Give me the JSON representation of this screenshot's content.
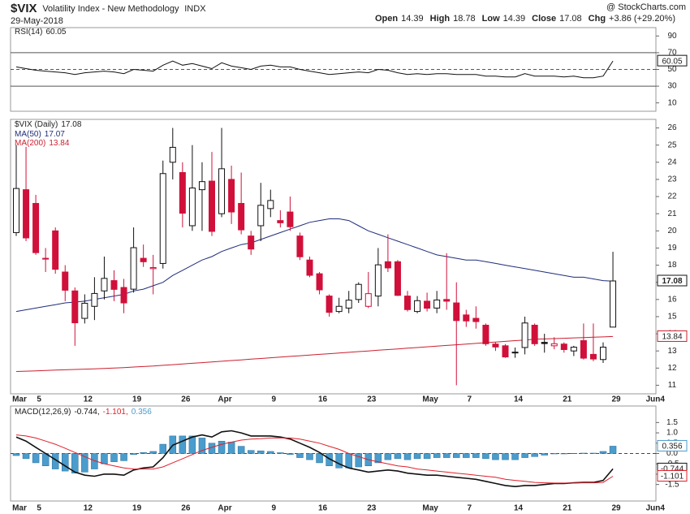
{
  "header": {
    "symbol": "$VIX",
    "name": "Volatility Index - New Methodology",
    "exchange": "INDX",
    "date": "29-May-2018",
    "source": "@ StockCharts.com",
    "quote": [
      {
        "label": "Open",
        "value": 14.39
      },
      {
        "label": "High",
        "value": 18.78
      },
      {
        "label": "Low",
        "value": 14.39
      },
      {
        "label": "Close",
        "value": 17.08
      },
      {
        "label": "Chg",
        "value": "+3.86 (+29.20%)"
      }
    ]
  },
  "chart_data": [
    {
      "type": "line",
      "ylim": [
        0,
        100
      ],
      "yticks": [
        10,
        30,
        50,
        70,
        90
      ],
      "overbought": 70,
      "oversold": 30,
      "centerline": 50,
      "series": [
        {
          "name": "RSI(14)",
          "color": "#111111",
          "values": [
            53,
            51,
            49,
            48,
            47,
            46,
            44,
            46,
            47,
            48,
            47,
            45,
            50,
            49,
            48,
            55,
            60,
            55,
            57,
            54,
            51,
            58,
            54,
            52,
            50,
            54,
            55,
            53,
            53,
            50,
            48,
            46,
            44,
            45,
            46,
            47,
            46,
            50,
            49,
            46,
            44,
            45,
            44,
            45,
            45,
            44,
            44,
            44,
            42,
            42,
            41,
            41,
            45,
            42,
            42,
            42,
            41,
            42,
            40,
            40,
            42,
            60.05,
            null,
            null,
            null,
            null
          ]
        }
      ]
    },
    {
      "type": "candlestick",
      "ylim": [
        10.5,
        26.5
      ],
      "yticks": [
        11,
        12,
        13,
        14,
        15,
        16,
        17,
        18,
        19,
        20,
        21,
        22,
        23,
        24,
        25,
        26
      ],
      "categories": [
        "Mar",
        null,
        "5",
        null,
        null,
        null,
        null,
        "12",
        null,
        null,
        null,
        null,
        "19",
        null,
        null,
        null,
        null,
        "26",
        null,
        null,
        null,
        "Apr",
        null,
        null,
        null,
        null,
        "9",
        null,
        null,
        null,
        null,
        "16",
        null,
        null,
        null,
        null,
        "23",
        null,
        null,
        null,
        null,
        null,
        "May",
        null,
        null,
        null,
        "7",
        null,
        null,
        null,
        null,
        "14",
        null,
        null,
        null,
        null,
        "21",
        null,
        null,
        null,
        null,
        "29",
        null,
        null,
        null,
        "Jun4"
      ],
      "series": [
        {
          "name": "$VIX (Daily)",
          "up_color": "#111111",
          "down_color": "#d0103a",
          "open": [
            19.9,
            22.4,
            21.6,
            18.4,
            20.0,
            17.6,
            16.5,
            14.9,
            15.6,
            16.5,
            17.1,
            16.7,
            16.6,
            18.4,
            17.8,
            18.1,
            24.0,
            23.4,
            20.3,
            22.4,
            22.9,
            21.0,
            23.0,
            21.6,
            19.7,
            20.3,
            21.3,
            20.6,
            21.1,
            19.7,
            18.3,
            17.5,
            16.2,
            15.3,
            15.5,
            16.0,
            15.6,
            16.2,
            18.2,
            18.2,
            16.2,
            15.3,
            15.9,
            15.5,
            16.0,
            15.8,
            15.1,
            14.9,
            14.5,
            13.4,
            13.3,
            12.9,
            13.2,
            14.5,
            13.5,
            13.3,
            13.4,
            13.0,
            13.6,
            12.8,
            12.5,
            14.39,
            null,
            null,
            null,
            null
          ],
          "high": [
            25.0,
            24.9,
            22.1,
            19.0,
            20.2,
            18.0,
            16.7,
            16.3,
            17.3,
            18.5,
            17.7,
            17.2,
            20.2,
            19.2,
            18.6,
            24.1,
            26.0,
            24.0,
            25.0,
            24.0,
            24.6,
            26.0,
            23.8,
            23.4,
            20.0,
            22.8,
            22.4,
            21.2,
            22.0,
            19.9,
            18.5,
            17.6,
            16.3,
            16.1,
            16.5,
            17.0,
            17.6,
            19.0,
            19.8,
            18.3,
            16.5,
            16.2,
            16.4,
            16.5,
            18.7,
            17.0,
            15.4,
            15.6,
            14.6,
            13.5,
            13.4,
            13.2,
            15.0,
            14.6,
            14.0,
            13.8,
            13.5,
            13.3,
            14.6,
            14.6,
            13.5,
            18.78,
            null,
            null,
            null,
            null
          ],
          "low": [
            19.7,
            19.4,
            18.6,
            17.6,
            17.5,
            15.9,
            13.3,
            14.6,
            14.8,
            16.0,
            15.9,
            15.2,
            16.4,
            17.9,
            16.3,
            17.8,
            23.0,
            20.2,
            20.0,
            20.0,
            19.7,
            20.8,
            20.4,
            19.8,
            18.6,
            19.4,
            20.8,
            20.2,
            20.0,
            18.3,
            17.3,
            16.3,
            15.0,
            15.2,
            15.2,
            15.8,
            15.5,
            15.6,
            17.6,
            16.2,
            15.3,
            15.2,
            15.3,
            15.2,
            15.4,
            11.0,
            14.4,
            14.3,
            13.3,
            13.0,
            12.6,
            12.6,
            12.8,
            13.3,
            12.9,
            13.1,
            12.9,
            12.7,
            12.5,
            12.4,
            12.3,
            14.39,
            null,
            null,
            null,
            null
          ],
          "close": [
            22.47,
            19.59,
            18.73,
            18.36,
            17.76,
            16.54,
            14.64,
            15.78,
            16.35,
            17.23,
            16.59,
            15.8,
            19.02,
            18.2,
            17.86,
            23.34,
            24.87,
            21.03,
            22.5,
            22.87,
            19.97,
            23.62,
            21.1,
            20.06,
            18.94,
            21.49,
            21.77,
            20.47,
            20.24,
            18.49,
            17.41,
            16.56,
            15.25,
            15.6,
            15.96,
            16.88,
            16.34,
            18.02,
            17.84,
            16.24,
            15.41,
            15.93,
            15.49,
            15.97,
            15.9,
            14.77,
            14.75,
            14.71,
            13.42,
            13.23,
            12.65,
            12.93,
            14.63,
            13.42,
            13.43,
            13.42,
            13.08,
            13.22,
            12.58,
            12.53,
            13.22,
            17.08,
            null,
            null,
            null,
            null
          ]
        },
        {
          "name": "MA(50)",
          "color": "#1f2d7a",
          "values": [
            15.3,
            15.4,
            15.5,
            15.6,
            15.7,
            15.8,
            15.85,
            15.9,
            16.0,
            16.1,
            16.2,
            16.3,
            16.5,
            16.6,
            16.8,
            17.0,
            17.4,
            17.7,
            18.0,
            18.3,
            18.5,
            18.8,
            19.0,
            19.2,
            19.3,
            19.5,
            19.7,
            19.9,
            20.1,
            20.3,
            20.5,
            20.6,
            20.7,
            20.7,
            20.6,
            20.3,
            20.0,
            19.8,
            19.6,
            19.4,
            19.2,
            19.0,
            18.8,
            18.6,
            18.5,
            18.4,
            18.3,
            18.3,
            18.2,
            18.1,
            18.0,
            17.9,
            17.8,
            17.7,
            17.6,
            17.5,
            17.4,
            17.3,
            17.3,
            17.2,
            17.1,
            17.07,
            null,
            null,
            null,
            null
          ]
        },
        {
          "name": "MA(200)",
          "color": "#cc1f2f",
          "values": [
            11.8,
            11.82,
            11.84,
            11.86,
            11.88,
            11.9,
            11.92,
            11.94,
            11.96,
            11.98,
            12.0,
            12.03,
            12.06,
            12.09,
            12.12,
            12.16,
            12.2,
            12.24,
            12.28,
            12.32,
            12.36,
            12.4,
            12.44,
            12.48,
            12.52,
            12.56,
            12.6,
            12.64,
            12.68,
            12.72,
            12.76,
            12.8,
            12.84,
            12.88,
            12.92,
            12.96,
            13.0,
            13.04,
            13.08,
            13.12,
            13.16,
            13.2,
            13.24,
            13.28,
            13.32,
            13.36,
            13.4,
            13.44,
            13.48,
            13.52,
            13.56,
            13.6,
            13.64,
            13.68,
            13.7,
            13.72,
            13.74,
            13.76,
            13.78,
            13.8,
            13.82,
            13.84,
            null,
            null,
            null,
            null
          ]
        }
      ]
    },
    {
      "type": "macd",
      "ylim": [
        -2.3,
        2.3
      ],
      "zero_line": true,
      "separator": ",",
      "yticks": [
        1.5,
        {
          "value": 1,
          "label": "1.0"
        },
        0.5,
        {
          "value": 0,
          "label": "0.0"
        },
        -0.5,
        {
          "value": -1,
          "label": "-1.0"
        },
        -1.5
      ],
      "series": [
        {
          "name": "MACD(12,26,9)",
          "color": "#111111",
          "values": [
            0.8,
            0.6,
            0.3,
            0.0,
            -0.3,
            -0.6,
            -0.9,
            -1.05,
            -1.1,
            -1.0,
            -1.0,
            -1.05,
            -0.8,
            -0.7,
            -0.65,
            -0.2,
            0.4,
            0.6,
            0.8,
            0.9,
            0.8,
            1.05,
            1.1,
            1.0,
            0.85,
            0.85,
            0.85,
            0.8,
            0.7,
            0.5,
            0.3,
            0.05,
            -0.25,
            -0.5,
            -0.7,
            -0.8,
            -0.9,
            -0.85,
            -0.8,
            -0.85,
            -0.95,
            -1.0,
            -1.05,
            -1.05,
            -1.1,
            -1.15,
            -1.2,
            -1.25,
            -1.35,
            -1.45,
            -1.55,
            -1.6,
            -1.55,
            -1.55,
            -1.5,
            -1.45,
            -1.45,
            -1.42,
            -1.4,
            -1.4,
            -1.3,
            -0.744,
            null,
            null,
            null,
            null
          ]
        },
        {
          "color": "#e0202a",
          "values": [
            0.9,
            0.85,
            0.75,
            0.6,
            0.45,
            0.25,
            0.05,
            -0.15,
            -0.35,
            -0.5,
            -0.6,
            -0.7,
            -0.75,
            -0.75,
            -0.75,
            -0.65,
            -0.45,
            -0.25,
            -0.05,
            0.15,
            0.3,
            0.45,
            0.55,
            0.65,
            0.7,
            0.72,
            0.75,
            0.76,
            0.75,
            0.7,
            0.6,
            0.5,
            0.35,
            0.2,
            0.0,
            -0.15,
            -0.3,
            -0.4,
            -0.5,
            -0.6,
            -0.65,
            -0.75,
            -0.8,
            -0.85,
            -0.9,
            -0.95,
            -1.0,
            -1.05,
            -1.1,
            -1.15,
            -1.25,
            -1.3,
            -1.35,
            -1.4,
            -1.42,
            -1.43,
            -1.43,
            -1.43,
            -1.42,
            -1.42,
            -1.4,
            -1.101,
            null,
            null,
            null,
            null
          ]
        },
        {
          "color": "#4a9ccc",
          "style": "bar",
          "values": [
            -0.1,
            -0.25,
            -0.45,
            -0.6,
            -0.75,
            -0.85,
            -0.95,
            -0.9,
            -0.75,
            -0.5,
            -0.4,
            -0.35,
            -0.05,
            0.05,
            0.1,
            0.45,
            0.85,
            0.85,
            0.85,
            0.75,
            0.5,
            0.6,
            0.55,
            0.35,
            0.15,
            0.13,
            0.1,
            0.04,
            -0.05,
            -0.2,
            -0.3,
            -0.45,
            -0.6,
            -0.7,
            -0.7,
            -0.65,
            -0.6,
            -0.45,
            -0.3,
            -0.25,
            -0.3,
            -0.25,
            -0.25,
            -0.2,
            -0.2,
            -0.2,
            -0.2,
            -0.2,
            -0.25,
            -0.3,
            -0.3,
            -0.3,
            -0.2,
            -0.15,
            -0.08,
            -0.02,
            -0.02,
            0.01,
            0.02,
            0.02,
            0.1,
            0.356,
            null,
            null,
            null,
            null
          ]
        }
      ]
    }
  ]
}
